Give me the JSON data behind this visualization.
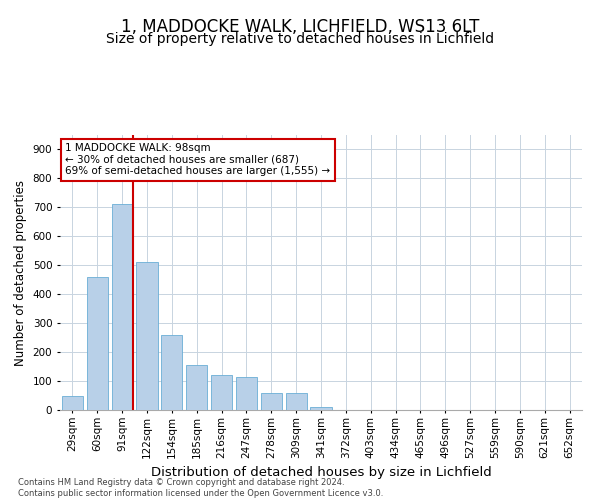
{
  "title": "1, MADDOCKE WALK, LICHFIELD, WS13 6LT",
  "subtitle": "Size of property relative to detached houses in Lichfield",
  "xlabel": "Distribution of detached houses by size in Lichfield",
  "ylabel": "Number of detached properties",
  "categories": [
    "29sqm",
    "60sqm",
    "91sqm",
    "122sqm",
    "154sqm",
    "185sqm",
    "216sqm",
    "247sqm",
    "278sqm",
    "309sqm",
    "341sqm",
    "372sqm",
    "403sqm",
    "434sqm",
    "465sqm",
    "496sqm",
    "527sqm",
    "559sqm",
    "590sqm",
    "621sqm",
    "652sqm"
  ],
  "values": [
    50,
    460,
    710,
    510,
    260,
    155,
    120,
    115,
    60,
    60,
    10,
    0,
    0,
    0,
    0,
    0,
    0,
    0,
    0,
    0,
    0
  ],
  "bar_color": "#b8d0e8",
  "bar_edge_color": "#6aaed6",
  "vline_index": 2,
  "vline_color": "#cc0000",
  "annotation_text": "1 MADDOCKE WALK: 98sqm\n← 30% of detached houses are smaller (687)\n69% of semi-detached houses are larger (1,555) →",
  "annotation_box_facecolor": "#ffffff",
  "annotation_box_edgecolor": "#cc0000",
  "ylim": [
    0,
    950
  ],
  "yticks": [
    0,
    100,
    200,
    300,
    400,
    500,
    600,
    700,
    800,
    900
  ],
  "title_fontsize": 12,
  "subtitle_fontsize": 10,
  "xlabel_fontsize": 9.5,
  "ylabel_fontsize": 8.5,
  "tick_fontsize": 7.5,
  "footer_text": "Contains HM Land Registry data © Crown copyright and database right 2024.\nContains public sector information licensed under the Open Government Licence v3.0.",
  "bg_color": "#ffffff",
  "grid_color": "#c8d4e0"
}
